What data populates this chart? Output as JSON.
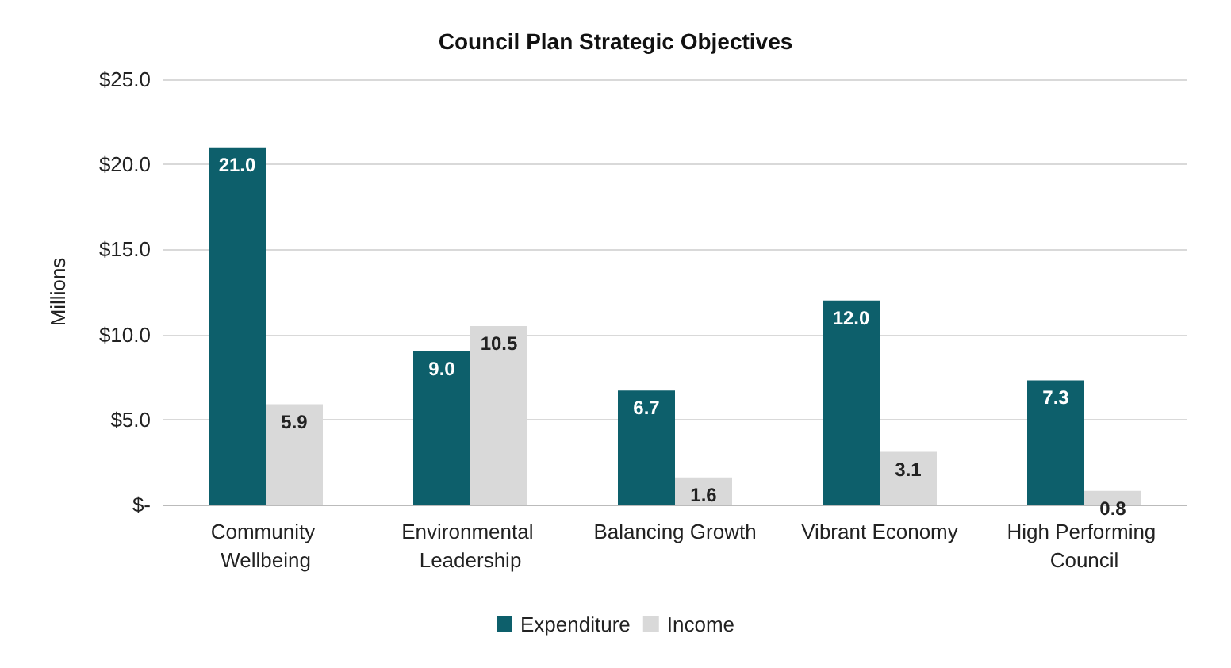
{
  "chart_data": {
    "type": "bar",
    "title": "Council Plan Strategic Objectives",
    "ylabel": "Millions",
    "categories": [
      "Community Wellbeing",
      "Environmental Leadership",
      "Balancing Growth",
      "Vibrant Economy",
      "High Performing Council"
    ],
    "series": [
      {
        "name": "Expenditure",
        "color": "#0d5f6b",
        "values": [
          21.0,
          9.0,
          6.7,
          12.0,
          7.3
        ],
        "value_labels": [
          "21.0",
          "9.0",
          "6.7",
          "12.0",
          "7.3"
        ]
      },
      {
        "name": "Income",
        "color": "#d9d9d9",
        "values": [
          5.9,
          10.5,
          1.6,
          3.1,
          0.8
        ],
        "value_labels": [
          "5.9",
          "10.5",
          "1.6",
          "3.1",
          "0.8"
        ]
      }
    ],
    "ylim": [
      0,
      25
    ],
    "yticks": [
      {
        "value": 0,
        "label": "$-"
      },
      {
        "value": 5,
        "label": "$5.0"
      },
      {
        "value": 10,
        "label": "$10.0"
      },
      {
        "value": 15,
        "label": "$15.0"
      },
      {
        "value": 20,
        "label": "$20.0"
      },
      {
        "value": 25,
        "label": "$25.0"
      }
    ],
    "grid": "y",
    "legend": "bottom"
  }
}
